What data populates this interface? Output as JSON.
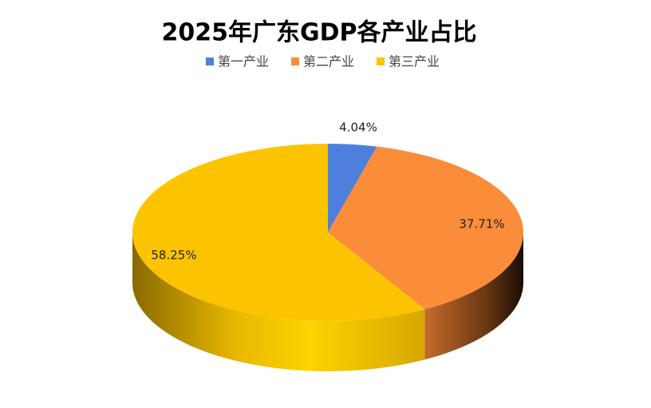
{
  "chart_data": {
    "type": "pie",
    "title": "2025年广东GDP各产业占比",
    "categories": [
      "第一产业",
      "第二产业",
      "第三产业"
    ],
    "values": [
      4.04,
      37.71,
      58.25
    ],
    "value_labels": [
      "4.04%",
      "37.71%",
      "58.25%"
    ],
    "colors": [
      "#4f7fdc",
      "#fb8c3a",
      "#fcc400"
    ]
  }
}
